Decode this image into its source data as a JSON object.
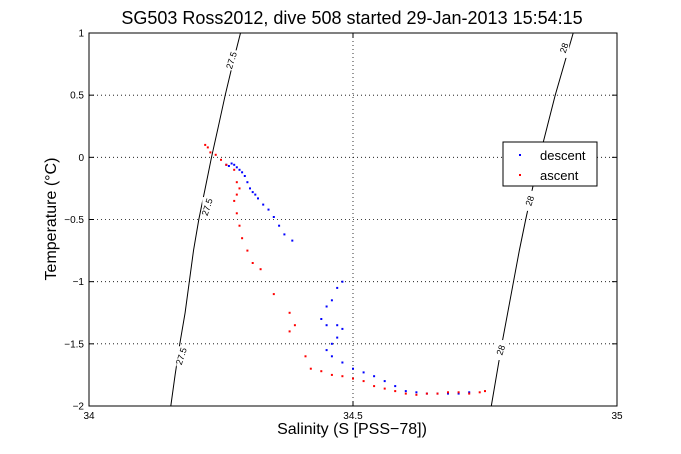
{
  "chart_data": {
    "type": "scatter",
    "title": "SG503 Ross2012, dive 508 started 29-Jan-2013 15:54:15",
    "xlabel": "Salinity (S [PSS−78])",
    "ylabel": "Temperature (°C)",
    "xlim": [
      34,
      35
    ],
    "ylim": [
      -2,
      1
    ],
    "xticks": [
      34,
      34.5,
      35
    ],
    "yticks": [
      -2,
      -1.5,
      -1,
      -0.5,
      0,
      0.5,
      1
    ],
    "xtick_labels": [
      "34",
      "34.5",
      "35"
    ],
    "ytick_labels": [
      "−2",
      "−1.5",
      "−1",
      "−0.5",
      "0",
      "0.5",
      "1"
    ],
    "grid": true,
    "legend_position": "right",
    "contours": [
      {
        "label": "27.5",
        "points": [
          [
            34.155,
            -2.0
          ],
          [
            34.163,
            -1.75
          ],
          [
            34.172,
            -1.5
          ],
          [
            34.182,
            -1.25
          ],
          [
            34.19,
            -1.0
          ],
          [
            34.198,
            -0.75
          ],
          [
            34.208,
            -0.5
          ],
          [
            34.22,
            -0.25
          ],
          [
            34.232,
            0.0
          ],
          [
            34.245,
            0.25
          ],
          [
            34.258,
            0.5
          ],
          [
            34.272,
            0.75
          ],
          [
            34.287,
            1.0
          ]
        ],
        "label_positions": [
          [
            34.27,
            0.78
          ],
          [
            34.224,
            -0.4
          ],
          [
            34.175,
            -1.6
          ]
        ]
      },
      {
        "label": "28",
        "points": [
          [
            34.762,
            -2.0
          ],
          [
            34.772,
            -1.75
          ],
          [
            34.782,
            -1.5
          ],
          [
            34.793,
            -1.25
          ],
          [
            34.804,
            -1.0
          ],
          [
            34.815,
            -0.75
          ],
          [
            34.827,
            -0.5
          ],
          [
            34.84,
            -0.25
          ],
          [
            34.853,
            0.0
          ],
          [
            34.868,
            0.25
          ],
          [
            34.883,
            0.5
          ],
          [
            34.9,
            0.75
          ],
          [
            34.917,
            1.0
          ]
        ],
        "label_positions": [
          [
            34.9,
            0.88
          ],
          [
            34.835,
            -0.35
          ],
          [
            34.78,
            -1.55
          ]
        ]
      }
    ],
    "series": [
      {
        "name": "descent",
        "color": "#0000ff",
        "points": [
          [
            34.26,
            -0.06
          ],
          [
            34.265,
            -0.07
          ],
          [
            34.27,
            -0.05
          ],
          [
            34.275,
            -0.06
          ],
          [
            34.28,
            -0.08
          ],
          [
            34.285,
            -0.1
          ],
          [
            34.29,
            -0.12
          ],
          [
            34.295,
            -0.15
          ],
          [
            34.3,
            -0.2
          ],
          [
            34.305,
            -0.25
          ],
          [
            34.31,
            -0.28
          ],
          [
            34.315,
            -0.3
          ],
          [
            34.32,
            -0.33
          ],
          [
            34.33,
            -0.38
          ],
          [
            34.34,
            -0.42
          ],
          [
            34.35,
            -0.48
          ],
          [
            34.36,
            -0.55
          ],
          [
            34.37,
            -0.62
          ],
          [
            34.385,
            -0.67
          ],
          [
            34.48,
            -1.0
          ],
          [
            34.47,
            -1.05
          ],
          [
            34.46,
            -1.15
          ],
          [
            34.45,
            -1.2
          ],
          [
            34.44,
            -1.3
          ],
          [
            34.45,
            -1.35
          ],
          [
            34.47,
            -1.35
          ],
          [
            34.48,
            -1.38
          ],
          [
            34.47,
            -1.45
          ],
          [
            34.46,
            -1.5
          ],
          [
            34.45,
            -1.55
          ],
          [
            34.46,
            -1.6
          ],
          [
            34.48,
            -1.65
          ],
          [
            34.5,
            -1.7
          ],
          [
            34.52,
            -1.73
          ],
          [
            34.54,
            -1.76
          ],
          [
            34.56,
            -1.8
          ],
          [
            34.58,
            -1.84
          ],
          [
            34.6,
            -1.88
          ],
          [
            34.62,
            -1.89
          ],
          [
            34.64,
            -1.9
          ],
          [
            34.66,
            -1.9
          ],
          [
            34.68,
            -1.9
          ],
          [
            34.7,
            -1.9
          ],
          [
            34.72,
            -1.89
          ]
        ]
      },
      {
        "name": "ascent",
        "color": "#ff0000",
        "points": [
          [
            34.22,
            0.1
          ],
          [
            34.225,
            0.08
          ],
          [
            34.23,
            0.04
          ],
          [
            34.24,
            0.02
          ],
          [
            34.25,
            -0.02
          ],
          [
            34.26,
            -0.06
          ],
          [
            34.275,
            -0.1
          ],
          [
            34.28,
            -0.2
          ],
          [
            34.285,
            -0.25
          ],
          [
            34.28,
            -0.3
          ],
          [
            34.275,
            -0.35
          ],
          [
            34.28,
            -0.45
          ],
          [
            34.285,
            -0.55
          ],
          [
            34.29,
            -0.65
          ],
          [
            34.3,
            -0.75
          ],
          [
            34.31,
            -0.85
          ],
          [
            34.325,
            -0.9
          ],
          [
            34.35,
            -1.1
          ],
          [
            34.38,
            -1.25
          ],
          [
            34.39,
            -1.35
          ],
          [
            34.38,
            -1.4
          ],
          [
            34.41,
            -1.6
          ],
          [
            34.42,
            -1.7
          ],
          [
            34.44,
            -1.72
          ],
          [
            34.46,
            -1.75
          ],
          [
            34.48,
            -1.76
          ],
          [
            34.5,
            -1.78
          ],
          [
            34.52,
            -1.8
          ],
          [
            34.54,
            -1.84
          ],
          [
            34.56,
            -1.86
          ],
          [
            34.58,
            -1.88
          ],
          [
            34.6,
            -1.9
          ],
          [
            34.62,
            -1.91
          ],
          [
            34.64,
            -1.9
          ],
          [
            34.66,
            -1.9
          ],
          [
            34.68,
            -1.89
          ],
          [
            34.7,
            -1.89
          ],
          [
            34.72,
            -1.9
          ],
          [
            34.74,
            -1.89
          ],
          [
            34.75,
            -1.88
          ]
        ]
      }
    ]
  }
}
